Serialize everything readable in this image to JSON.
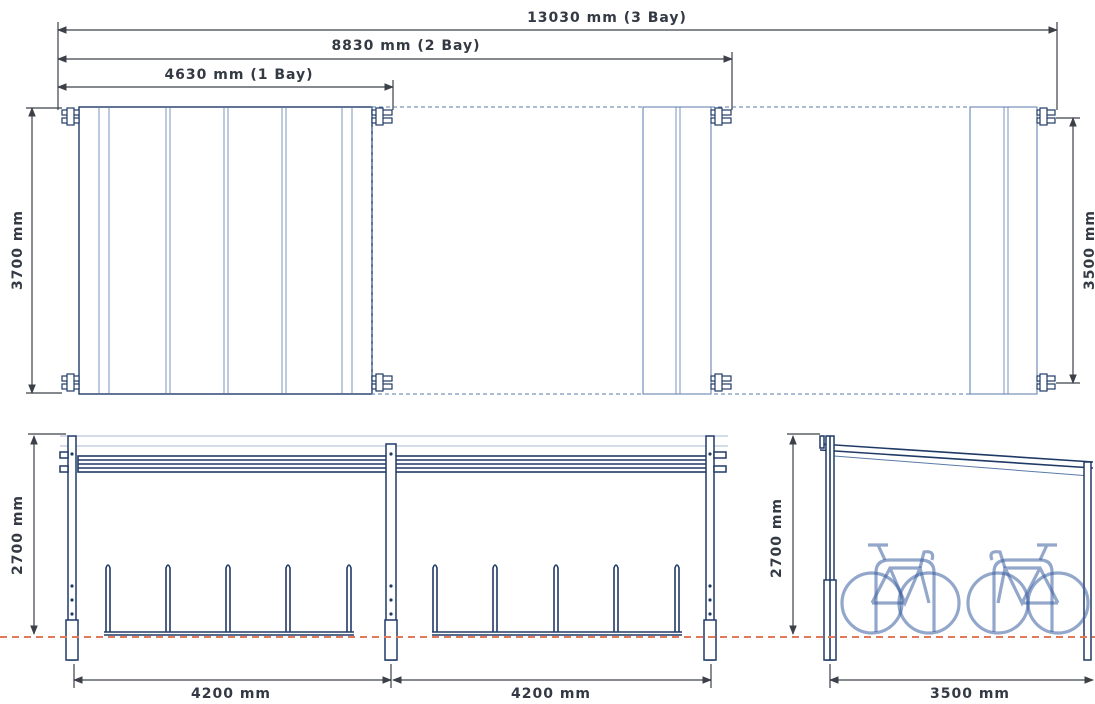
{
  "dimensions": {
    "three_bay_length": "13030 mm (3 Bay)",
    "two_bay_length": "8830 mm (2 Bay)",
    "one_bay_length": "4630 mm (1 Bay)",
    "plan_depth_outer": "3700 mm",
    "plan_depth_inner": "3500 mm",
    "front_height": "2700 mm",
    "side_height": "2700 mm",
    "bay_width_left": "4200 mm",
    "bay_width_right": "4200 mm",
    "side_depth": "3500 mm"
  },
  "colors": {
    "frame": "#203a66",
    "ground_line": "#e07a5a",
    "dimension": "#3c4049"
  }
}
